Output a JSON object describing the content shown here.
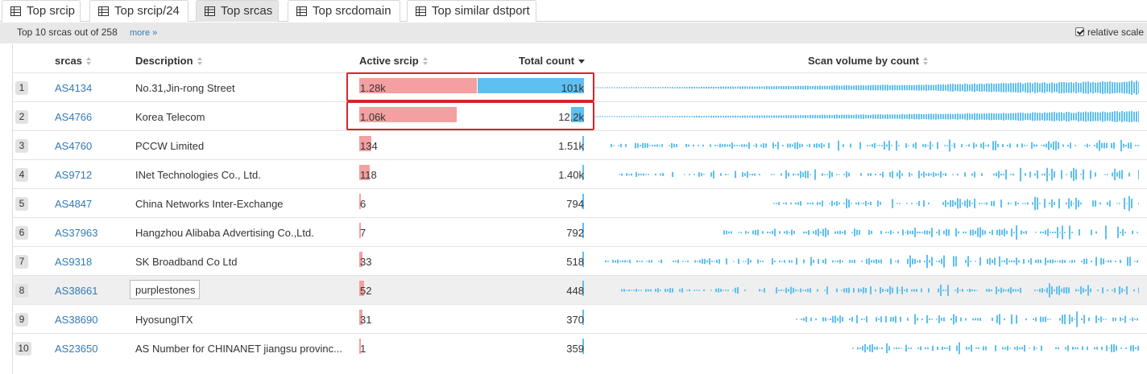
{
  "tabs": [
    {
      "label": "Top srcip",
      "active": false
    },
    {
      "label": "Top srcip/24",
      "active": false
    },
    {
      "label": "Top srcas",
      "active": true
    },
    {
      "label": "Top srcdomain",
      "active": false
    },
    {
      "label": "Top similar dstport",
      "active": false
    }
  ],
  "summary": {
    "text": "Top 10 srcas out of 258",
    "more_link": "more »",
    "relative_scale_label": "relative scale",
    "relative_scale_checked": true
  },
  "columns": {
    "srcas": "srcas",
    "description": "Description",
    "active_srcip": "Active srcip",
    "total_count": "Total count",
    "scan_volume": "Scan volume by count"
  },
  "colors": {
    "active_bar": "#f4a0a0",
    "total_bar": "#5fbff0",
    "highlight_box": "#d9232a",
    "link": "#337ab7"
  },
  "rows": [
    {
      "rank": "1",
      "as": "AS4134",
      "description": "No.31,Jin-rong Street",
      "active_srcip": "1.28k",
      "active_value": 1280,
      "total_count": "101k",
      "total_value": 101000,
      "highlighted_box": true
    },
    {
      "rank": "2",
      "as": "AS4766",
      "description": "Korea Telecom",
      "active_srcip": "1.06k",
      "active_value": 1060,
      "total_count": "12.2k",
      "total_value": 12200,
      "highlighted_box": true
    },
    {
      "rank": "3",
      "as": "AS4760",
      "description": "PCCW Limited",
      "active_srcip": "134",
      "active_value": 134,
      "total_count": "1.51k",
      "total_value": 1510
    },
    {
      "rank": "4",
      "as": "AS9712",
      "description": "INet Technologies Co., Ltd.",
      "active_srcip": "118",
      "active_value": 118,
      "total_count": "1.40k",
      "total_value": 1400
    },
    {
      "rank": "5",
      "as": "AS4847",
      "description": "China Networks Inter-Exchange",
      "active_srcip": "6",
      "active_value": 6,
      "total_count": "794",
      "total_value": 794
    },
    {
      "rank": "6",
      "as": "AS37963",
      "description": "Hangzhou Alibaba Advertising Co.,Ltd.",
      "active_srcip": "7",
      "active_value": 7,
      "total_count": "792",
      "total_value": 792
    },
    {
      "rank": "7",
      "as": "AS9318",
      "description": "SK Broadband Co Ltd",
      "active_srcip": "33",
      "active_value": 33,
      "total_count": "518",
      "total_value": 518
    },
    {
      "rank": "8",
      "as": "AS38661",
      "description": "purplestones",
      "active_srcip": "52",
      "active_value": 52,
      "total_count": "448",
      "total_value": 448,
      "editing": true
    },
    {
      "rank": "9",
      "as": "AS38690",
      "description": "HyosungITX",
      "active_srcip": "31",
      "active_value": 31,
      "total_count": "370",
      "total_value": 370
    },
    {
      "rank": "10",
      "as": "AS23650",
      "description": "AS Number for CHINANET jiangsu provinc...",
      "active_srcip": "1",
      "active_value": 1,
      "total_count": "359",
      "total_value": 359
    }
  ]
}
